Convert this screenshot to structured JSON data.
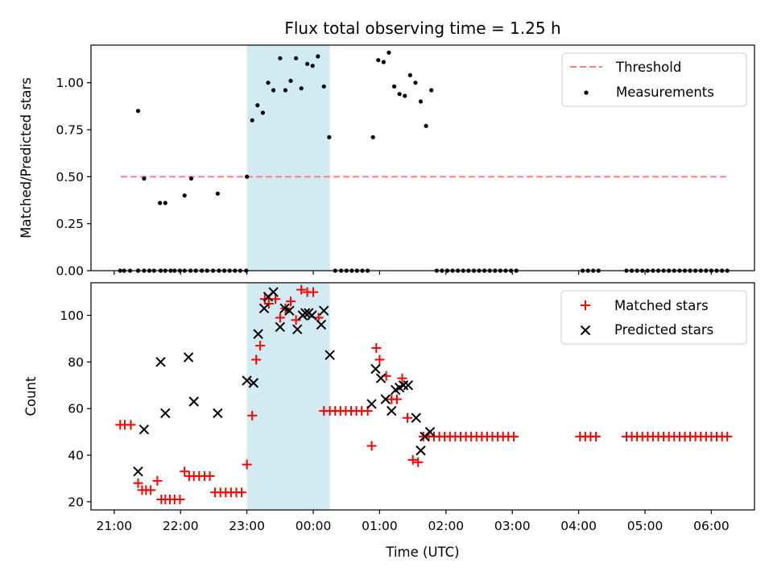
{
  "chart_data": {
    "type": "scatter",
    "title": "Flux total observing time = 1.25 h",
    "xlabel": "Time (UTC)",
    "x_unit": "hours since 21:00 UTC",
    "xlim": [
      -0.35,
      9.65
    ],
    "x_ticks": [
      {
        "v": 0,
        "label": "21:00"
      },
      {
        "v": 1,
        "label": "22:00"
      },
      {
        "v": 2,
        "label": "23:00"
      },
      {
        "v": 3,
        "label": "00:00"
      },
      {
        "v": 4,
        "label": "01:00"
      },
      {
        "v": 5,
        "label": "02:00"
      },
      {
        "v": 6,
        "label": "03:00"
      },
      {
        "v": 7,
        "label": "04:00"
      },
      {
        "v": 8,
        "label": "05:00"
      },
      {
        "v": 9,
        "label": "06:00"
      }
    ],
    "highlight_span": {
      "x0": 2.0,
      "x1": 3.25,
      "color": "#add8e6"
    },
    "top": {
      "ylabel": "Matched/Predicted stars",
      "ylim": [
        0,
        1.2
      ],
      "y_ticks": [
        {
          "v": 0,
          "label": "0.00"
        },
        {
          "v": 0.25,
          "label": "0.25"
        },
        {
          "v": 0.5,
          "label": "0.50"
        },
        {
          "v": 0.75,
          "label": "0.75"
        },
        {
          "v": 1.0,
          "label": "1.00"
        }
      ],
      "threshold": {
        "name": "Threshold",
        "y": 0.5,
        "x0": 0.1,
        "x1": 9.25,
        "color": "#ff7f7f"
      },
      "measurements": {
        "name": "Measurements",
        "color": "#000000",
        "x": [
          0.09,
          0.15,
          0.24,
          0.36,
          0.45,
          0.53,
          0.6,
          0.7,
          0.77,
          0.85,
          0.91,
          0.99,
          1.06,
          1.15,
          1.23,
          1.32,
          1.4,
          1.49,
          1.58,
          1.66,
          1.74,
          1.82,
          1.9,
          1.99,
          0.36,
          0.45,
          0.69,
          0.77,
          1.06,
          1.16,
          1.56,
          2.0,
          2.08,
          2.16,
          2.24,
          2.32,
          2.4,
          2.5,
          2.58,
          2.66,
          2.74,
          2.82,
          2.91,
          2.99,
          3.07,
          3.16,
          3.24,
          3.33,
          3.42,
          3.5,
          3.58,
          3.66,
          3.74,
          3.82,
          3.9,
          3.98,
          4.06,
          4.14,
          4.22,
          4.3,
          4.38,
          4.46,
          4.54,
          4.62,
          4.7,
          4.78,
          4.86,
          4.94,
          5.02,
          5.1,
          5.18,
          5.26,
          5.34,
          5.42,
          5.5,
          5.58,
          5.66,
          5.74,
          5.82,
          5.9,
          5.98,
          6.06,
          7.06,
          7.14,
          7.22,
          7.3,
          7.72,
          7.8,
          7.88,
          7.96,
          8.04,
          8.12,
          8.2,
          8.28,
          8.36,
          8.44,
          8.52,
          8.6,
          8.68,
          8.76,
          8.84,
          8.92,
          9.0,
          9.08,
          9.16,
          9.24
        ],
        "y": [
          0.0,
          0.0,
          0.0,
          0.0,
          0.0,
          0.0,
          0.0,
          0.0,
          0.0,
          0.0,
          0.0,
          0.0,
          0.0,
          0.0,
          0.0,
          0.0,
          0.0,
          0.0,
          0.0,
          0.0,
          0.0,
          0.0,
          0.0,
          0.0,
          0.85,
          0.49,
          0.36,
          0.36,
          0.4,
          0.49,
          0.41,
          0.5,
          0.8,
          0.88,
          0.84,
          1.0,
          0.96,
          1.13,
          0.96,
          1.01,
          1.13,
          0.97,
          1.1,
          1.09,
          1.14,
          0.98,
          0.71,
          0.0,
          0.0,
          0.0,
          0.0,
          0.0,
          0.0,
          0.0,
          0.71,
          1.12,
          1.11,
          1.16,
          0.98,
          0.94,
          0.93,
          1.04,
          1.0,
          0.9,
          0.77,
          0.96,
          0.0,
          0.0,
          0.0,
          0.0,
          0.0,
          0.0,
          0.0,
          0.0,
          0.0,
          0.0,
          0.0,
          0.0,
          0.0,
          0.0,
          0.0,
          0.0,
          0.0,
          0.0,
          0.0,
          0.0,
          0.0,
          0.0,
          0.0,
          0.0,
          0.0,
          0.0,
          0.0,
          0.0,
          0.0,
          0.0,
          0.0,
          0.0,
          0.0,
          0.0,
          0.0,
          0.0,
          0.0,
          0.0,
          0.0,
          0.0
        ]
      }
    },
    "bottom": {
      "ylabel": "Count",
      "ylim": [
        16.5,
        114
      ],
      "y_ticks": [
        {
          "v": 20,
          "label": "20"
        },
        {
          "v": 40,
          "label": "40"
        },
        {
          "v": 60,
          "label": "60"
        },
        {
          "v": 80,
          "label": "80"
        },
        {
          "v": 100,
          "label": "100"
        }
      ],
      "series": [
        {
          "name": "Matched stars",
          "marker": "plus",
          "color": "#ff0000",
          "x": [
            0.09,
            0.16,
            0.25,
            0.36,
            0.42,
            0.48,
            0.55,
            0.65,
            0.71,
            0.77,
            0.84,
            0.91,
            0.99,
            1.06,
            1.13,
            1.2,
            1.28,
            1.36,
            1.44,
            1.52,
            1.6,
            1.68,
            1.76,
            1.84,
            1.92,
            2.0,
            2.08,
            2.14,
            2.2,
            2.27,
            2.33,
            2.43,
            2.5,
            2.58,
            2.66,
            2.74,
            2.82,
            2.91,
            3.0,
            3.08,
            3.16,
            3.25,
            3.33,
            3.41,
            3.49,
            3.57,
            3.65,
            3.73,
            3.82,
            3.88,
            3.95,
            4.0,
            4.1,
            4.18,
            4.26,
            4.34,
            4.42,
            4.5,
            4.58,
            4.66,
            4.74,
            4.82,
            4.9,
            4.98,
            5.06,
            5.14,
            5.22,
            5.3,
            5.38,
            5.46,
            5.54,
            5.62,
            5.7,
            5.78,
            5.86,
            5.94,
            6.02,
            7.02,
            7.1,
            7.18,
            7.26,
            7.72,
            7.8,
            7.88,
            7.96,
            8.04,
            8.12,
            8.2,
            8.28,
            8.36,
            8.44,
            8.52,
            8.6,
            8.68,
            8.76,
            8.84,
            8.92,
            9.0,
            9.08,
            9.16,
            9.24
          ],
          "y": [
            53,
            53,
            53,
            28,
            25,
            25,
            25,
            29,
            21,
            21,
            21,
            21,
            21,
            33,
            31,
            31,
            31,
            31,
            31,
            24,
            24,
            24,
            24,
            24,
            24,
            36,
            57,
            81,
            87,
            107,
            105,
            107,
            99,
            103,
            106,
            98,
            111,
            110,
            110,
            99,
            59,
            59,
            59,
            59,
            59,
            59,
            59,
            59,
            59,
            44,
            86,
            81,
            74,
            64,
            64,
            73,
            56,
            38,
            37,
            48,
            48,
            48,
            48,
            48,
            48,
            48,
            48,
            48,
            48,
            48,
            48,
            48,
            48,
            48,
            48,
            48,
            48,
            48,
            48,
            48,
            48,
            48,
            48,
            48,
            48,
            48,
            48,
            48,
            48,
            48,
            48,
            48,
            48,
            48,
            48,
            48,
            48,
            48,
            48,
            48,
            48
          ]
        },
        {
          "name": "Predicted stars",
          "marker": "x",
          "color": "#000000",
          "x": [
            0.36,
            0.45,
            0.7,
            0.77,
            1.12,
            1.2,
            1.56,
            2.0,
            2.1,
            2.17,
            2.26,
            2.32,
            2.4,
            2.5,
            2.57,
            2.64,
            2.76,
            2.84,
            2.88,
            2.93,
            2.98,
            3.12,
            3.16,
            3.25,
            3.88,
            3.94,
            4.02,
            4.09,
            4.18,
            4.24,
            4.3,
            4.36,
            4.43,
            4.55,
            4.62,
            4.68,
            4.76
          ],
          "y": [
            33,
            51,
            80,
            58,
            82,
            63,
            58,
            72,
            71,
            92,
            103,
            108,
            110,
            95,
            103,
            102,
            94,
            100,
            101,
            101,
            100,
            96,
            102,
            83,
            62,
            77,
            73,
            64,
            59,
            68,
            69,
            70,
            70,
            56,
            42,
            48,
            50
          ]
        }
      ]
    }
  }
}
